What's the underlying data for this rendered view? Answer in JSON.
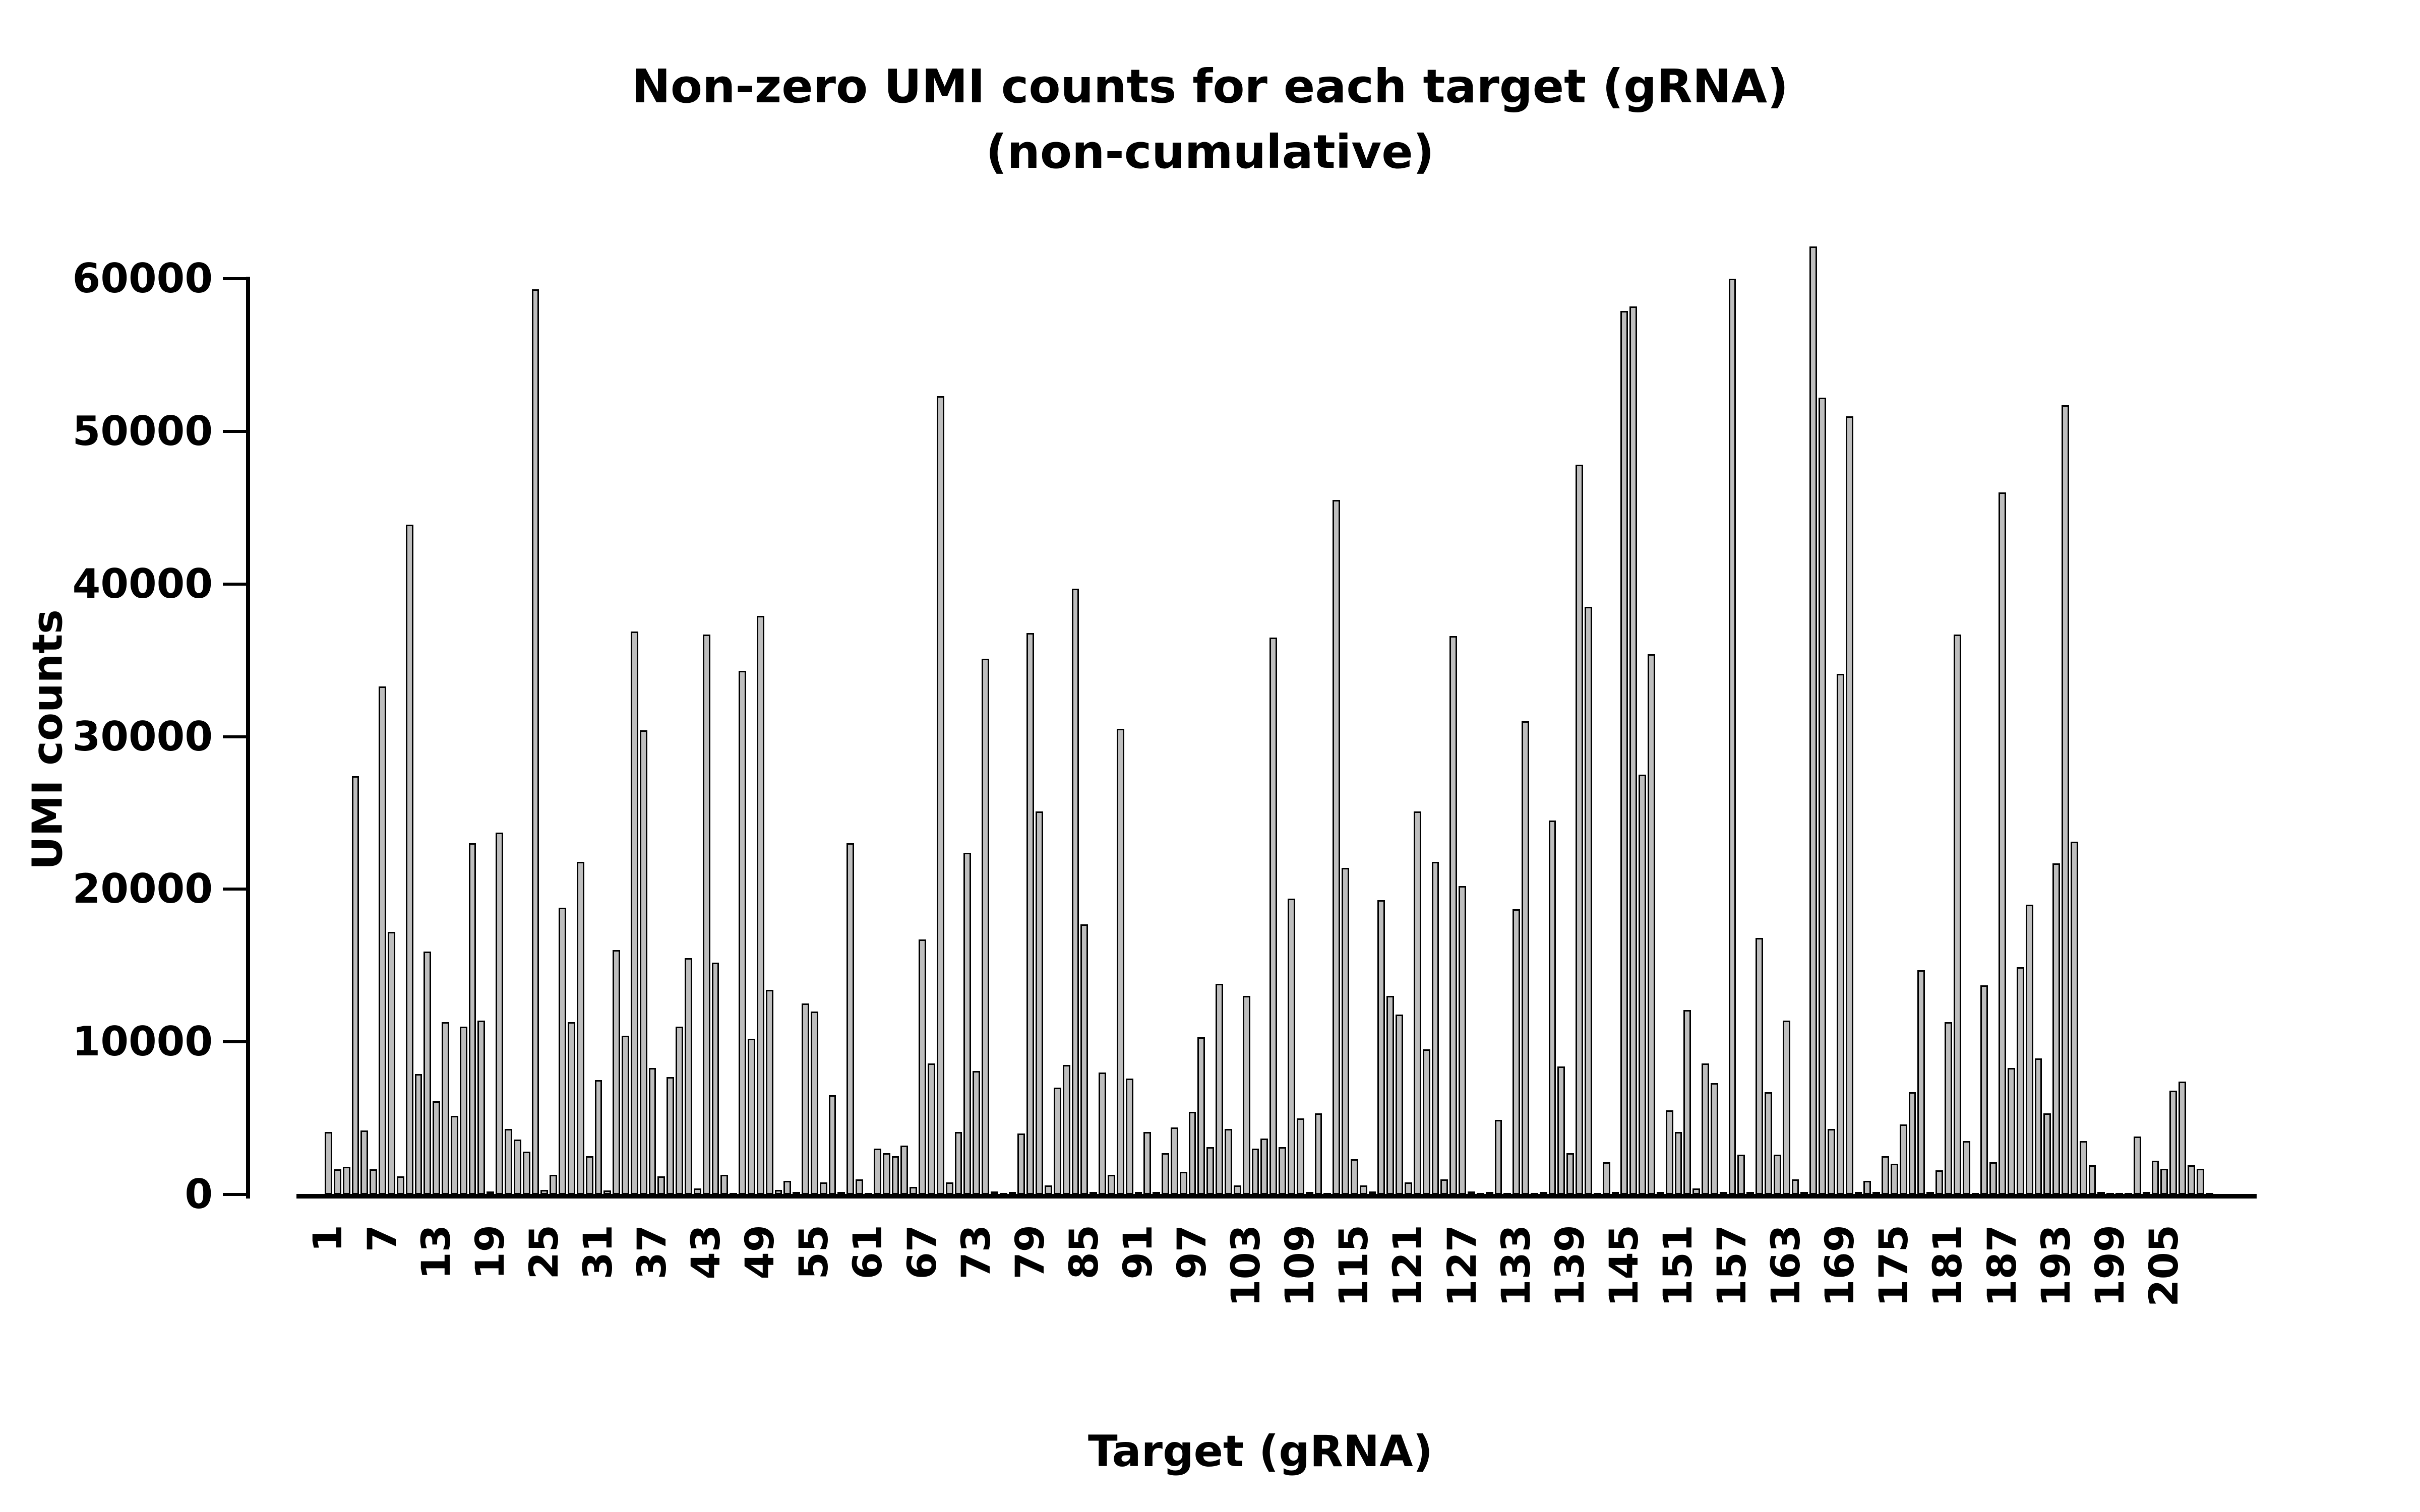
{
  "title": {
    "line1": "Non-zero UMI counts for each target (gRNA)",
    "line2": "(non-cumulative)"
  },
  "axes": {
    "x_label": "Target (gRNA)",
    "y_label": "UMI counts",
    "y_ticks": [
      0,
      10000,
      20000,
      30000,
      40000,
      50000,
      60000
    ],
    "x_tick_labels": [
      "1",
      "7",
      "13",
      "19",
      "25",
      "31",
      "37",
      "43",
      "49",
      "55",
      "61",
      "67",
      "73",
      "79",
      "85",
      "91",
      "97",
      "103",
      "109",
      "115",
      "121",
      "127",
      "133",
      "139",
      "145",
      "151",
      "157",
      "163",
      "169",
      "175",
      "181",
      "187",
      "193",
      "199",
      "205"
    ],
    "x_tick_step": 6
  },
  "style": {
    "background": "#ffffff",
    "bar_fill": "#bebebe",
    "bar_stroke": "#000000",
    "text_color": "#000000"
  },
  "chart_data": {
    "type": "bar",
    "title": "Non-zero UMI counts for each target (gRNA) (non-cumulative)",
    "xlabel": "Target (gRNA)",
    "ylabel": "UMI counts",
    "ylim": [
      0,
      62500
    ],
    "grid": false,
    "legend": "none",
    "n_bars": 210,
    "x_first_bar": 1,
    "values": [
      4100,
      1650,
      1800,
      27400,
      4200,
      1650,
      33300,
      17200,
      1200,
      43900,
      7900,
      15900,
      6100,
      11300,
      5150,
      11000,
      23000,
      11400,
      200,
      23700,
      4300,
      3600,
      2800,
      59300,
      300,
      1300,
      18800,
      11300,
      21800,
      2500,
      7500,
      250,
      16000,
      10400,
      36900,
      30400,
      8300,
      1200,
      7700,
      11000,
      15500,
      400,
      36700,
      15200,
      1300,
      100,
      34300,
      10200,
      37900,
      13400,
      300,
      900,
      150,
      12500,
      12000,
      800,
      6500,
      150,
      23000,
      1000,
      100,
      3000,
      2700,
      2500,
      3200,
      500,
      16700,
      8600,
      52300,
      800,
      4100,
      22400,
      8100,
      35100,
      200,
      100,
      150,
      4000,
      36800,
      25100,
      600,
      7000,
      8500,
      39700,
      17700,
      150,
      8000,
      1300,
      30500,
      7600,
      150,
      4100,
      150,
      2700,
      4400,
      1500,
      5400,
      10300,
      3100,
      13800,
      4300,
      600,
      13000,
      3000,
      3650,
      36500,
      3100,
      19400,
      5000,
      150,
      5300,
      100,
      45500,
      21400,
      2300,
      600,
      200,
      19300,
      13000,
      11800,
      800,
      25100,
      9500,
      21800,
      1000,
      36600,
      20200,
      200,
      100,
      150,
      4900,
      100,
      18700,
      31000,
      100,
      150,
      24500,
      8400,
      2700,
      47800,
      38500,
      100,
      2100,
      150,
      57900,
      58200,
      27500,
      35400,
      150,
      5500,
      4100,
      12100,
      400,
      8600,
      7300,
      150,
      60000,
      2600,
      150,
      16800,
      6700,
      2600,
      11400,
      1000,
      150,
      62100,
      52200,
      4300,
      34100,
      51000,
      150,
      900,
      150,
      2500,
      2000,
      4600,
      6700,
      14700,
      150,
      1600,
      11300,
      36700,
      3500,
      100,
      13700,
      2100,
      46000,
      8300,
      14900,
      19000,
      8900,
      5300,
      21700,
      51700,
      23100,
      3500,
      1900,
      150,
      100,
      100,
      100,
      3800,
      150,
      2200,
      1700,
      6800,
      7400,
      1900,
      1700,
      100
    ]
  }
}
